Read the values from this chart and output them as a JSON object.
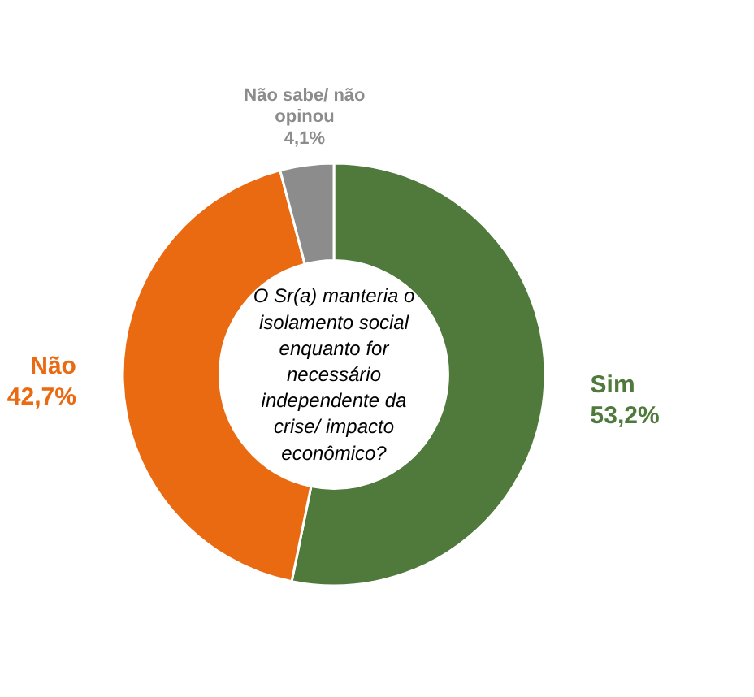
{
  "chart_data": {
    "type": "donut",
    "title": "O Sr(a) manteria o isolamento social enquanto for necessário independente da crise/ impacto econômico?",
    "categories": [
      "Sim",
      "Não",
      "Não sabe/ não opinou"
    ],
    "values": [
      53.2,
      42.7,
      4.1
    ],
    "value_labels": [
      "53,2%",
      "42,7%",
      "4,1%"
    ],
    "colors": [
      "#4f7a3c",
      "#ea6a12",
      "#8c8c8c"
    ]
  }
}
